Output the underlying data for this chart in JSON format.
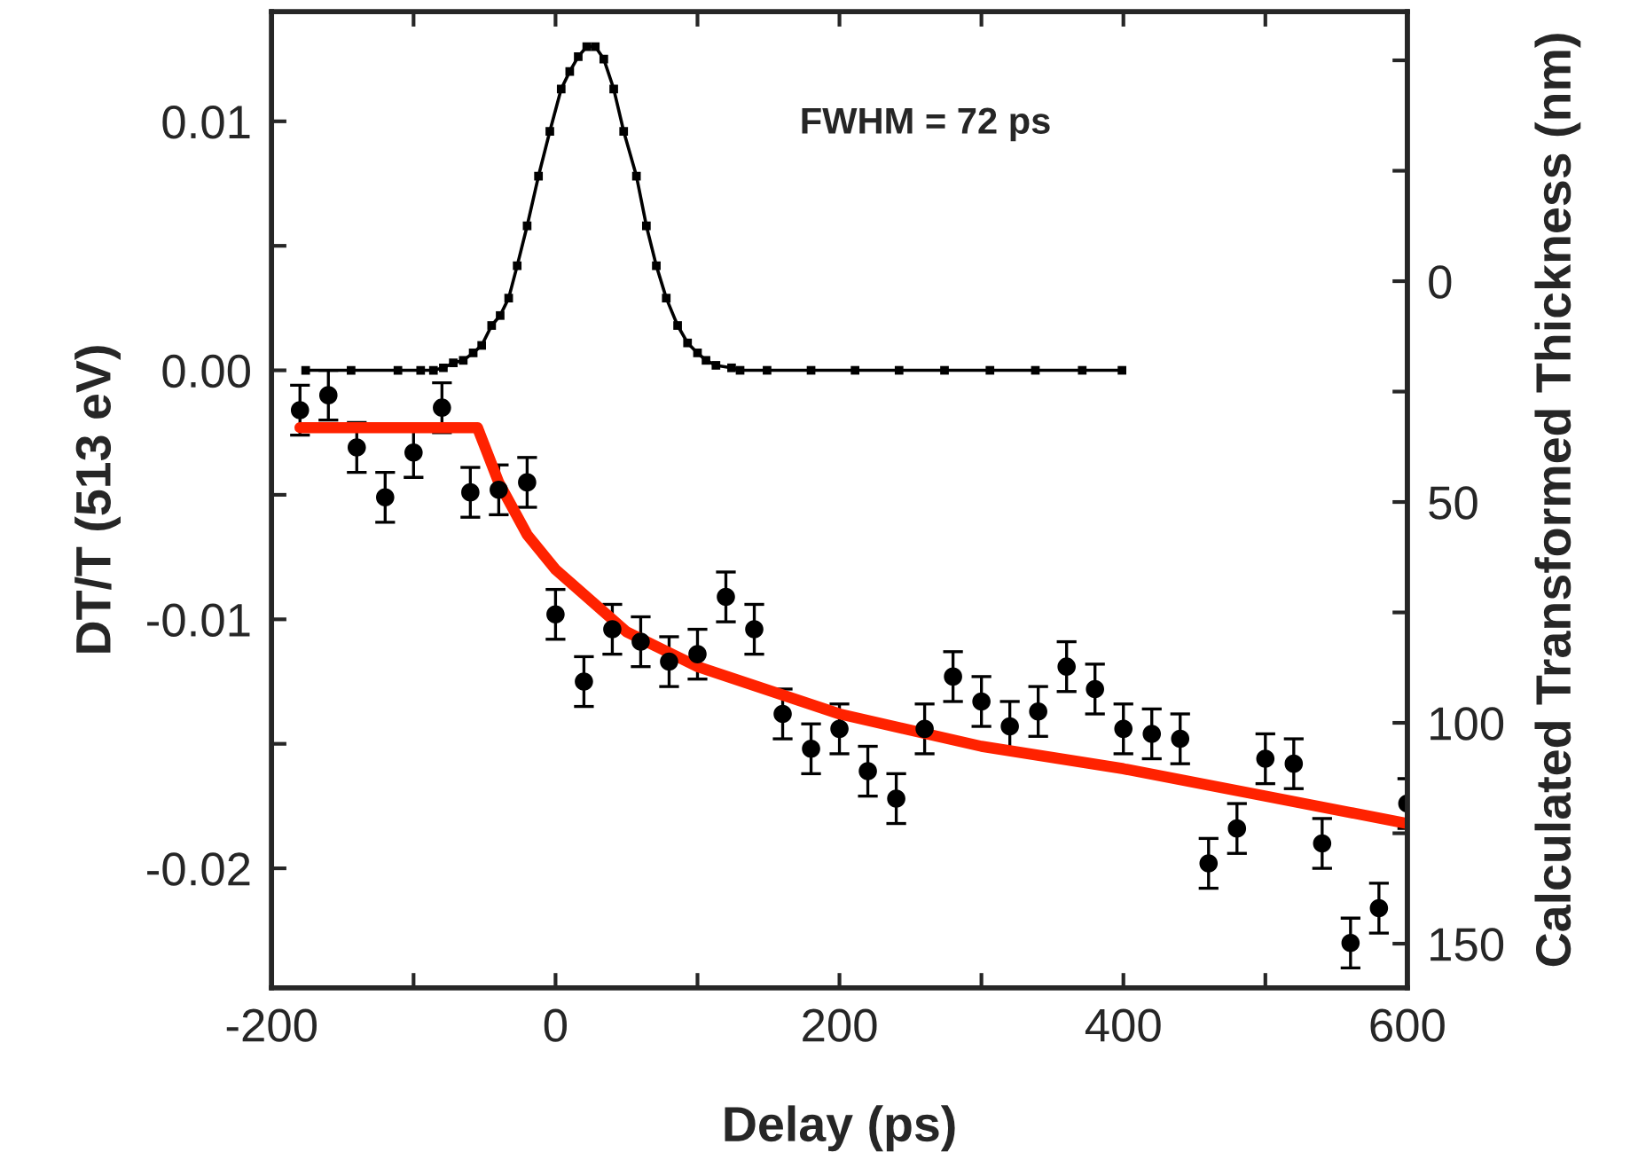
{
  "chart_data": {
    "type": "scatter",
    "xlabel": "Delay (ps)",
    "ylabel": "DT/T (513 eV)",
    "y2label": "Calculated Transformed Thickness (nm)",
    "annotations": [
      "FWHM = 72 ps"
    ],
    "xlim": [
      -200,
      600
    ],
    "xticks": [
      -200,
      {
        "value": -100,
        "label": null
      },
      0,
      {
        "value": 100,
        "label": null
      },
      200,
      {
        "value": 300,
        "label": null
      },
      400,
      {
        "value": 500,
        "label": null
      },
      600
    ],
    "ylim": [
      -0.0248,
      0.0144
    ],
    "yticks": [
      {
        "value": -0.02,
        "label": "-0.02"
      },
      {
        "value": -0.015,
        "label": null
      },
      {
        "value": -0.01,
        "label": "-0.01"
      },
      {
        "value": -0.005,
        "label": null
      },
      {
        "value": 0.0,
        "label": "0.00"
      },
      {
        "value": 0.005,
        "label": null
      },
      {
        "value": 0.01,
        "label": "0.01"
      }
    ],
    "y2lim": [
      160,
      -61
    ],
    "y2ticks": [
      {
        "value": -50,
        "label": null
      },
      {
        "value": -25,
        "label": null
      },
      0,
      {
        "value": 25,
        "label": null
      },
      50,
      {
        "value": 75,
        "label": null
      },
      100,
      {
        "value": 125,
        "label": null
      },
      150
    ],
    "grid": false,
    "legend": false,
    "series": [
      {
        "type": "line",
        "color": "#000000",
        "marker": "square",
        "line_style": "solid",
        "x": [
          -176,
          -144,
          -111,
          -95,
          -86,
          -79,
          -72,
          -65,
          -58,
          -52,
          -45,
          -39,
          -33,
          -27,
          -20,
          -12,
          -4,
          4,
          10,
          16,
          22,
          28,
          34,
          41,
          48,
          57,
          64,
          71,
          78,
          86,
          93,
          100,
          106,
          113,
          124,
          130,
          149,
          180,
          211,
          242,
          274,
          306,
          338,
          371,
          399
        ],
        "values": [
          0,
          0,
          0,
          0,
          0,
          0.0001,
          0.0003,
          0.0004,
          0.0007,
          0.001,
          0.0018,
          0.0022,
          0.0029,
          0.0042,
          0.0058,
          0.0078,
          0.0096,
          0.0113,
          0.012,
          0.0126,
          0.013,
          0.013,
          0.0125,
          0.0113,
          0.0096,
          0.0078,
          0.0058,
          0.0042,
          0.0029,
          0.0018,
          0.0011,
          0.0007,
          0.0004,
          0.0002,
          0.0001,
          0,
          0,
          0,
          0,
          0,
          0,
          0,
          0,
          0,
          0
        ]
      },
      {
        "color": "#000000",
        "marker": "circle",
        "x": [
          -180,
          -160,
          -140,
          -120,
          -100,
          -80,
          -60,
          -40,
          -20,
          0,
          20,
          40,
          60,
          80,
          100,
          120,
          140,
          160,
          180,
          200,
          220,
          240,
          260,
          280,
          300,
          320,
          340,
          360,
          380,
          400,
          420,
          440,
          460,
          480,
          500,
          520,
          540,
          560,
          580,
          600
        ],
        "values": [
          -0.0016,
          -0.001,
          -0.0031,
          -0.0051,
          -0.0033,
          -0.0015,
          -0.0049,
          -0.0048,
          -0.0045,
          -0.0098,
          -0.0125,
          -0.0104,
          -0.0109,
          -0.0117,
          -0.0114,
          -0.0091,
          -0.0104,
          -0.0138,
          -0.0152,
          -0.0144,
          -0.0161,
          -0.0172,
          -0.0144,
          -0.0123,
          -0.0133,
          -0.0143,
          -0.0137,
          -0.0119,
          -0.0128,
          -0.0144,
          -0.0146,
          -0.0148,
          -0.0198,
          -0.0184,
          -0.0156,
          -0.0158,
          -0.019,
          -0.023,
          -0.0216,
          -0.0174
        ],
        "errors": [
          0.001,
          0.001,
          0.001,
          0.001,
          0.001,
          0.001,
          0.001,
          0.001,
          0.001,
          0.001,
          0.001,
          0.001,
          0.001,
          0.001,
          0.001,
          0.001,
          0.001,
          0.001,
          0.001,
          0.001,
          0.001,
          0.001,
          0.001,
          0.001,
          0.001,
          0.001,
          0.001,
          0.001,
          0.001,
          0.001,
          0.001,
          0.001,
          0.001,
          0.001,
          0.001,
          0.001,
          0.001,
          0.001,
          0.001,
          0.001
        ]
      },
      {
        "type": "line",
        "color": "#ff2200",
        "marker": "none",
        "line_style": "solid",
        "x": [
          -180,
          -55,
          -40,
          -20,
          0,
          50,
          100,
          200,
          300,
          400,
          500,
          600
        ],
        "values": [
          -0.0023,
          -0.0023,
          -0.0045,
          -0.0066,
          -0.008,
          -0.0105,
          -0.0119,
          -0.0138,
          -0.0151,
          -0.016,
          -0.0171,
          -0.0182
        ]
      }
    ]
  }
}
